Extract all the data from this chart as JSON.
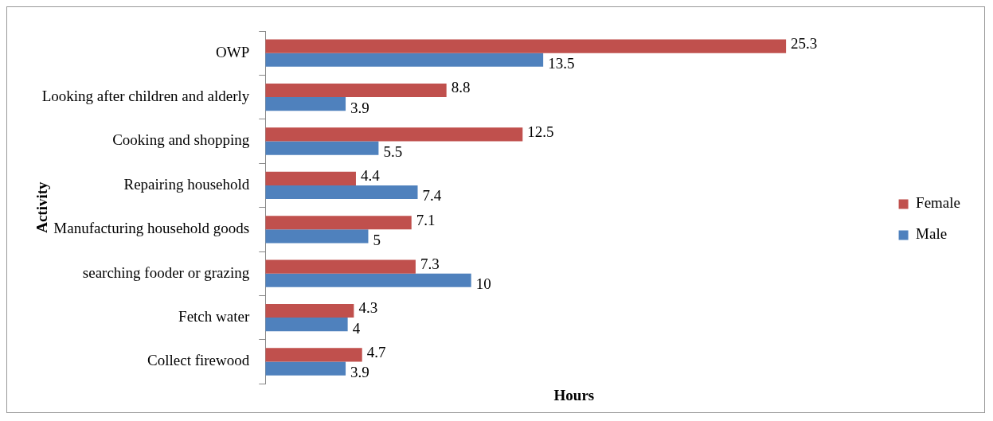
{
  "chart_data": {
    "type": "bar",
    "orientation": "horizontal",
    "xlabel": "Hours",
    "ylabel": "Activity",
    "categories": [
      "OWP",
      "Looking after children and alderly",
      "Cooking and shopping",
      "Repairing household",
      "Manufacturing household goods",
      "searching fooder or grazing",
      "Fetch water",
      "Collect firewood"
    ],
    "series": [
      {
        "name": "Female",
        "color": "#c0504d",
        "values": [
          25.3,
          8.8,
          12.5,
          4.4,
          7.1,
          7.3,
          4.3,
          4.7
        ]
      },
      {
        "name": "Male",
        "color": "#4f81bd",
        "values": [
          13.5,
          3.9,
          5.5,
          7.4,
          5,
          10,
          4,
          3.9
        ]
      }
    ],
    "data_labels": true,
    "legend": "right",
    "grid": false,
    "tick_labels": "y"
  }
}
